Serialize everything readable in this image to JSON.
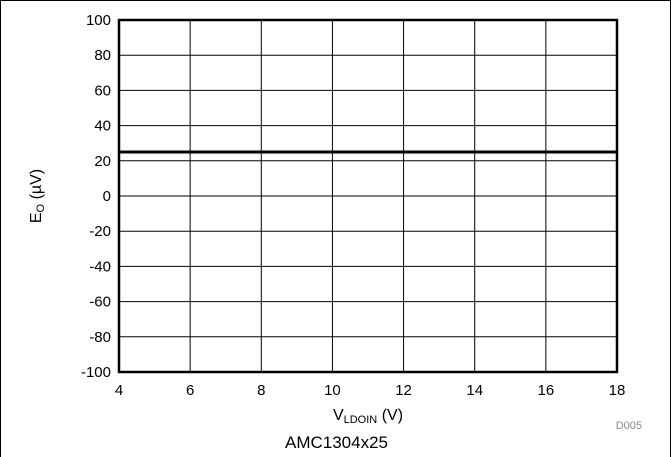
{
  "chart_data": {
    "type": "line",
    "x_ticks": [
      "4",
      "6",
      "8",
      "10",
      "12",
      "14",
      "16",
      "18"
    ],
    "y_ticks": [
      "100",
      "80",
      "60",
      "40",
      "20",
      "0",
      "-20",
      "-40",
      "-60",
      "-80",
      "-100"
    ],
    "xlim": [
      4,
      18
    ],
    "ylim": [
      -100,
      100
    ],
    "x_step": 2,
    "y_step": 20,
    "grid": true,
    "xlabel": {
      "main": "V",
      "sub": "LDOIN",
      "suffix": " (V)"
    },
    "ylabel": {
      "main": "E",
      "sub": "O",
      "suffix": " (µV)"
    },
    "series": [
      {
        "x": [
          4,
          18
        ],
        "y": [
          25,
          25
        ]
      }
    ],
    "figure_id": "D005"
  },
  "caption": "AMC1304x25"
}
